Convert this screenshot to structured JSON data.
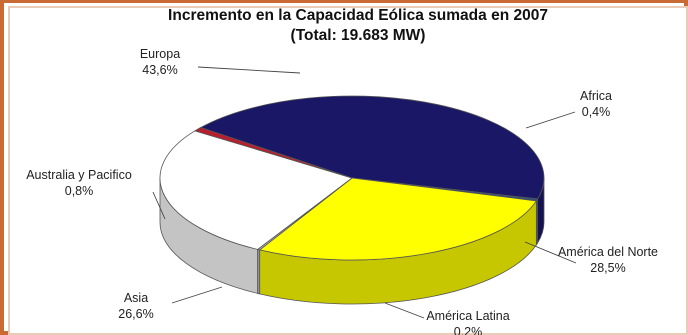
{
  "chart_data": {
    "type": "pie",
    "style": "3d",
    "title": "Incremento en la Capacidad Eólica sumada en 2007",
    "subtitle": "(Total: 19.683 MW)",
    "slices": [
      {
        "name": "Europa",
        "value": 43.6,
        "label": "43,6%",
        "color": "#1a1766"
      },
      {
        "name": "Africa",
        "value": 0.4,
        "label": "0,4%",
        "color": "#2e4f7a"
      },
      {
        "name": "América del Norte",
        "value": 28.5,
        "label": "28,5%",
        "color": "#ffff00"
      },
      {
        "name": "América Latina",
        "value": 0.2,
        "label": "0,2%",
        "color": "#b8b8b8"
      },
      {
        "name": "Asia",
        "value": 26.6,
        "label": "26,6%",
        "color": "#ffffff"
      },
      {
        "name": "Australia y Pacifico",
        "value": 0.8,
        "label": "0,8%",
        "color": "#b81f2e"
      }
    ]
  }
}
